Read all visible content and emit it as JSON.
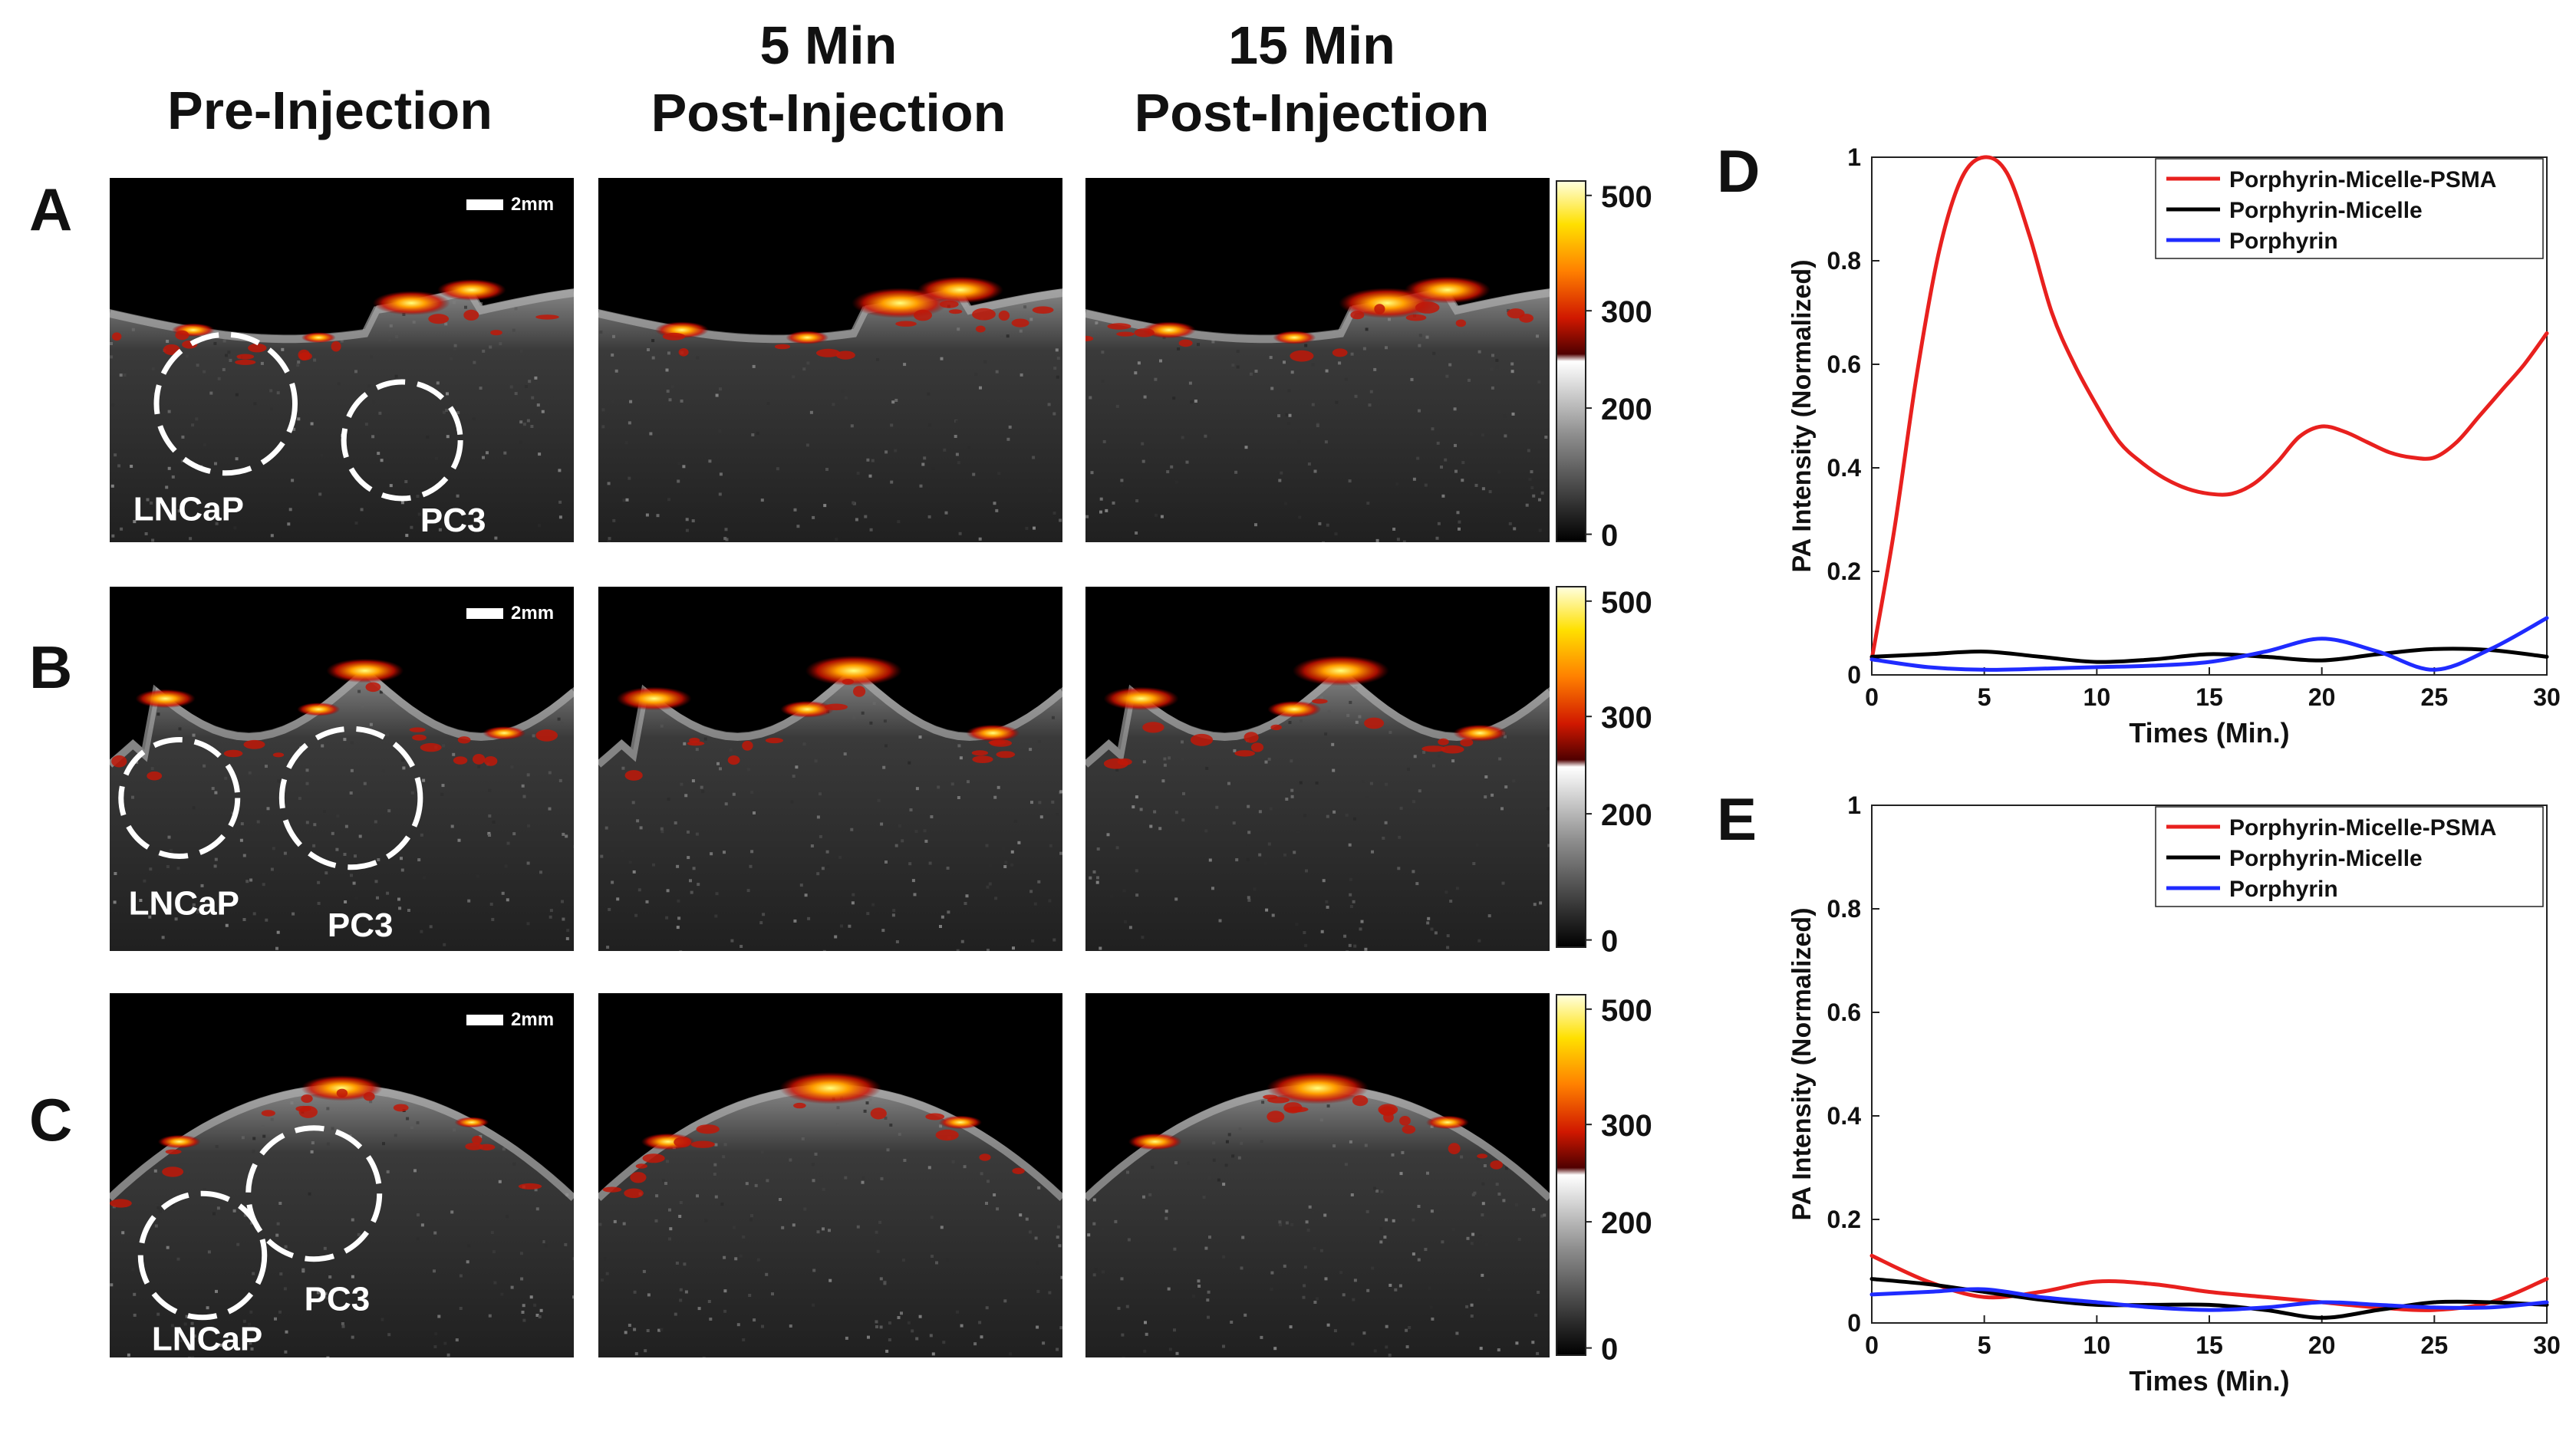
{
  "figure": {
    "column_headers": [
      "Pre-Injection",
      "5  Min\nPost-Injection",
      "15 Min\nPost-Injection"
    ],
    "row_labels": [
      "A",
      "B",
      "C"
    ],
    "scale_bar_label": "2mm",
    "tumor_labels": {
      "lncap": "LNCaP",
      "pc3": "PC3"
    },
    "colorbar_ticks": [
      "500",
      "300",
      "200",
      "0"
    ]
  },
  "colors": {
    "red_series": "#e8201e",
    "black_series": "#000000",
    "blue_series": "#1f2bff"
  },
  "chart_data": [
    {
      "panel_label": "D",
      "type": "line",
      "xlabel": "Times (Min.)",
      "ylabel": "PA Intensity (Normalized)",
      "xlim": [
        0,
        30
      ],
      "ylim": [
        0,
        1
      ],
      "xticks": [
        "0",
        "5",
        "10",
        "15",
        "20",
        "25",
        "30"
      ],
      "yticks": [
        "0",
        "0.2",
        "0.4",
        "0.6",
        "0.8",
        "1"
      ],
      "legend_position": "top-right",
      "series": [
        {
          "name": "Porphyrin-Micelle-PSMA",
          "color": "#e8201e",
          "x": [
            0,
            1,
            2,
            3,
            4,
            5,
            6,
            7,
            8,
            9,
            10,
            11,
            12,
            13,
            14,
            15,
            16,
            17,
            18,
            19,
            20,
            21,
            22,
            23,
            24,
            25,
            26,
            27,
            28,
            29,
            30
          ],
          "y": [
            0.03,
            0.28,
            0.58,
            0.82,
            0.96,
            1.0,
            0.97,
            0.85,
            0.7,
            0.6,
            0.52,
            0.45,
            0.41,
            0.38,
            0.36,
            0.35,
            0.35,
            0.37,
            0.41,
            0.46,
            0.48,
            0.47,
            0.45,
            0.43,
            0.42,
            0.42,
            0.45,
            0.5,
            0.55,
            0.6,
            0.66
          ]
        },
        {
          "name": "Porphyrin-Micelle",
          "color": "#000000",
          "x": [
            0,
            2.5,
            5,
            7.5,
            10,
            12.5,
            15,
            17.5,
            20,
            22.5,
            25,
            27.5,
            30
          ],
          "y": [
            0.035,
            0.04,
            0.045,
            0.035,
            0.025,
            0.03,
            0.04,
            0.035,
            0.028,
            0.04,
            0.05,
            0.048,
            0.035
          ]
        },
        {
          "name": "Porphyrin",
          "color": "#1f2bff",
          "x": [
            0,
            2.5,
            5,
            7.5,
            10,
            12.5,
            15,
            17.5,
            20,
            22.5,
            25,
            27.5,
            30
          ],
          "y": [
            0.03,
            0.015,
            0.01,
            0.012,
            0.015,
            0.018,
            0.025,
            0.045,
            0.07,
            0.045,
            0.01,
            0.05,
            0.11
          ]
        }
      ]
    },
    {
      "panel_label": "E",
      "type": "line",
      "xlabel": "Times (Min.)",
      "ylabel": "PA Intensity (Normalized)",
      "xlim": [
        0,
        30
      ],
      "ylim": [
        0,
        1
      ],
      "xticks": [
        "0",
        "5",
        "10",
        "15",
        "20",
        "25",
        "30"
      ],
      "yticks": [
        "0",
        "0.2",
        "0.4",
        "0.6",
        "0.8",
        "1"
      ],
      "legend_position": "top-right",
      "series": [
        {
          "name": "Porphyrin-Micelle-PSMA",
          "color": "#e8201e",
          "x": [
            0,
            2.5,
            5,
            7.5,
            10,
            12.5,
            15,
            17.5,
            20,
            22.5,
            25,
            27.5,
            30
          ],
          "y": [
            0.13,
            0.08,
            0.05,
            0.06,
            0.08,
            0.075,
            0.06,
            0.05,
            0.04,
            0.03,
            0.025,
            0.04,
            0.085
          ]
        },
        {
          "name": "Porphyrin-Micelle",
          "color": "#000000",
          "x": [
            0,
            2.5,
            5,
            7.5,
            10,
            12.5,
            15,
            17.5,
            20,
            22.5,
            25,
            27.5,
            30
          ],
          "y": [
            0.085,
            0.075,
            0.06,
            0.045,
            0.035,
            0.035,
            0.035,
            0.025,
            0.01,
            0.025,
            0.04,
            0.04,
            0.035
          ]
        },
        {
          "name": "Porphyrin",
          "color": "#1f2bff",
          "x": [
            0,
            2.5,
            5,
            7.5,
            10,
            12.5,
            15,
            17.5,
            20,
            22.5,
            25,
            27.5,
            30
          ],
          "y": [
            0.055,
            0.06,
            0.065,
            0.05,
            0.04,
            0.03,
            0.025,
            0.03,
            0.04,
            0.035,
            0.03,
            0.03,
            0.04
          ]
        }
      ]
    }
  ]
}
